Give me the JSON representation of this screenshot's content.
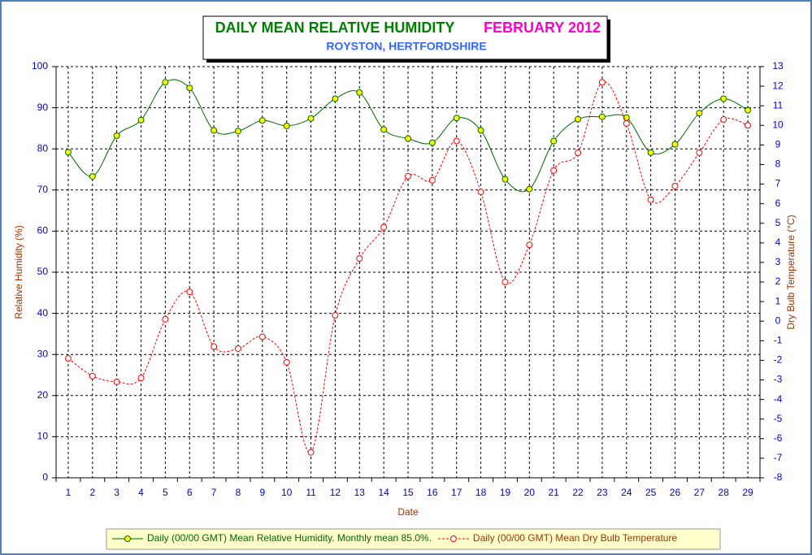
{
  "chart_data": {
    "type": "line",
    "title": "DAILY MEAN RELATIVE HUMIDITY",
    "title_period": "FEBRUARY 2012",
    "subtitle": "ROYSTON, HERTFORDSHIRE",
    "xlabel": "Date",
    "ylabel": "Relative Humidity (%)",
    "y2label": "Dry Bulb Temperature (°C)",
    "categories": [
      "1",
      "2",
      "3",
      "4",
      "5",
      "6",
      "7",
      "8",
      "9",
      "10",
      "11",
      "12",
      "13",
      "14",
      "15",
      "16",
      "17",
      "18",
      "19",
      "20",
      "21",
      "22",
      "23",
      "24",
      "25",
      "26",
      "27",
      "28",
      "29"
    ],
    "ylim": [
      0,
      100
    ],
    "yticks": [
      0,
      10,
      20,
      30,
      40,
      50,
      60,
      70,
      80,
      90,
      100
    ],
    "y2lim": [
      -8,
      13
    ],
    "y2ticks": [
      -8,
      -7,
      -6,
      -5,
      -4,
      -3,
      -2,
      -1,
      0,
      1,
      2,
      3,
      4,
      5,
      6,
      7,
      8,
      9,
      10,
      11,
      12,
      13
    ],
    "grid": true,
    "legend": "bottom",
    "series": [
      {
        "name": "Daily (00/00 GMT) Mean Relative Humidity. Monthly mean 85.0%.",
        "color": "#006600",
        "marker_fill": "#ffff00",
        "dashed": false,
        "values": [
          79.2,
          73.3,
          83.2,
          87.0,
          96.2,
          94.8,
          84.5,
          84.3,
          86.9,
          85.6,
          87.4,
          92.2,
          93.7,
          84.7,
          82.5,
          81.5,
          87.5,
          84.5,
          72.6,
          70.2,
          81.9,
          87.2,
          87.8,
          87.6,
          79.1,
          81.1,
          88.7,
          92.2,
          89.4
        ]
      },
      {
        "name": "Daily (00/00 GMT) Mean Dry Bulb Temperature",
        "color": "#ff0000",
        "marker_fill": "#ffffff",
        "dashed": true,
        "axis": "y2",
        "values": [
          -1.9,
          -2.8,
          -3.1,
          -2.9,
          0.1,
          1.5,
          -1.3,
          -1.4,
          -0.8,
          -2.1,
          -6.7,
          0.3,
          3.2,
          4.8,
          7.4,
          7.2,
          9.2,
          6.6,
          2.0,
          3.9,
          7.7,
          8.6,
          12.2,
          10.1,
          6.2,
          6.9,
          8.6,
          10.3,
          10.0
        ]
      }
    ]
  }
}
